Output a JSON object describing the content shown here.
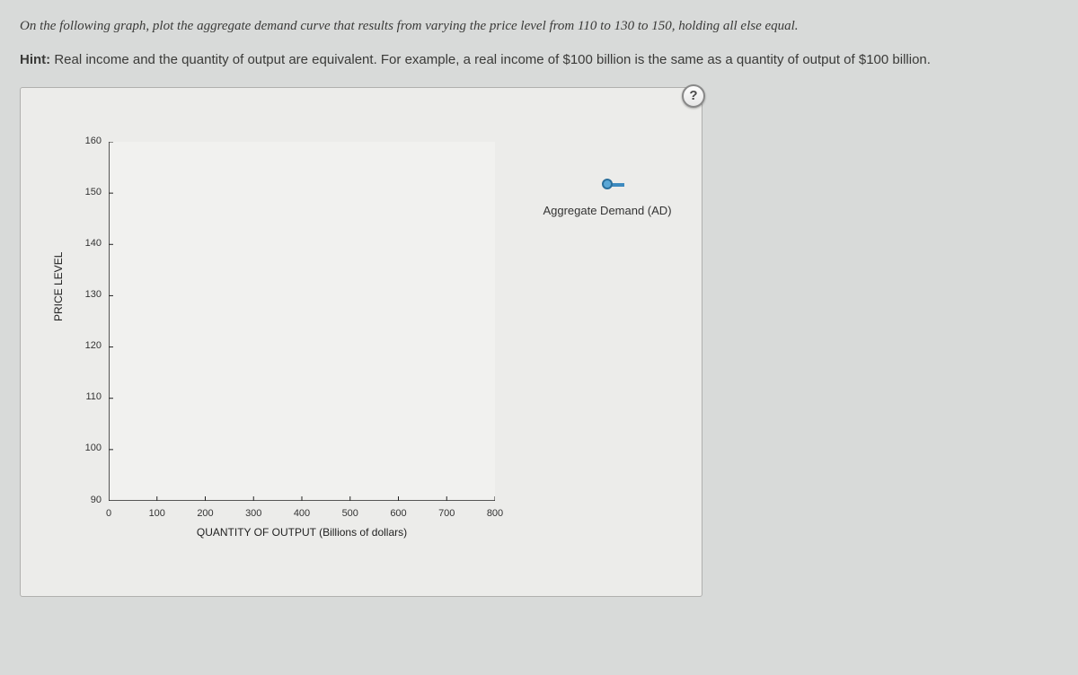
{
  "instruction": "On the following graph, plot the aggregate demand curve that results from varying the price level from 110 to 130 to 150, holding all else equal.",
  "hint_label": "Hint:",
  "hint_text": " Real income and the quantity of output are equivalent. For example, a real income of $100 billion is the same as a quantity of output of $100 billion.",
  "help_icon": "?",
  "chart": {
    "type": "scatter-line",
    "background_color": "#ececea",
    "plot_bg": "#f1f1ef",
    "axis_color": "#222222",
    "y_axis": {
      "label": "PRICE LEVEL",
      "min": 90,
      "max": 160,
      "tick_step": 10,
      "ticks": [
        90,
        100,
        110,
        120,
        130,
        140,
        150,
        160
      ],
      "tick_fontsize": 11,
      "label_fontsize": 12
    },
    "x_axis": {
      "label": "QUANTITY OF OUTPUT (Billions of dollars)",
      "min": 0,
      "max": 800,
      "tick_step": 100,
      "ticks": [
        0,
        100,
        200,
        300,
        400,
        500,
        600,
        700,
        800
      ],
      "tick_fontsize": 11,
      "label_fontsize": 12
    },
    "legend": {
      "label": "Aggregate Demand (AD)",
      "marker_color": "#5aa7d6",
      "marker_border": "#2a6f9c",
      "line_color": "#3d8abf"
    }
  }
}
